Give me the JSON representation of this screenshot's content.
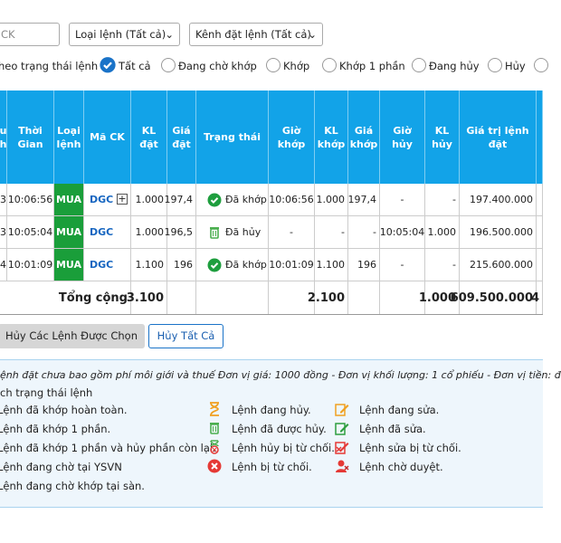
{
  "filters": {
    "symbol": "CK",
    "order_type": "Loại lệnh (Tất cả)",
    "channel": "Kênh đặt lệnh (Tất cả)",
    "status_label": "heo trạng thái lệnh",
    "status_options": [
      "Tất cả",
      "Đang chờ khớp",
      "Khớp",
      "Khớp 1 phần",
      "Đang hủy",
      "Hủy"
    ]
  },
  "table": {
    "headers": [
      "u h",
      "Thời Gian",
      "Loại lệnh",
      "Mã CK",
      "KL đặt",
      "Giá đặt",
      "Trạng thái",
      "Giờ khớp",
      "KL khớp",
      "Giá khớp",
      "Giờ hủy",
      "KL hủy",
      "Giá trị lệnh đặt"
    ],
    "rows": [
      [
        "3",
        "10:06:56",
        "MUA",
        "DGC",
        "1.000",
        "197,4",
        "Đã khớp",
        "10:06:56",
        "1.000",
        "197,4",
        "-",
        "-",
        "197.400.000"
      ],
      [
        "3",
        "10:05:04",
        "MUA",
        "DGC",
        "1.000",
        "196,5",
        "Đã hủy",
        "-",
        "-",
        "-",
        "10:05:04",
        "1.000",
        "196.500.000"
      ],
      [
        "4",
        "10:01:09",
        "MUA",
        "DGC",
        "1.100",
        "196",
        "Đã khớp",
        "10:01:09",
        "1.100",
        "196",
        "-",
        "-",
        "215.600.000"
      ]
    ],
    "total": {
      "label": "Tổng cộng",
      "kl_dat": "3.100",
      "kl_khop": "2.100",
      "kl_huy": "1.000",
      "gia_tri": "609.500.000",
      "extra": "4"
    }
  },
  "buttons": {
    "cancel_selected": "Hủy Các Lệnh Được Chọn",
    "cancel_all": "Hủy Tất Cả"
  },
  "legend": {
    "note": "ệnh đặt chưa bao gồm phí môi giới và thuế  Đơn vị giá: 1000 đồng - Đơn vị khối lượng: 1 cổ phiếu - Đơn vị tiền: đ",
    "title": "ch trạng thái lệnh",
    "col1": [
      "Lệnh đã khớp hoàn toàn.",
      "Lệnh đã khớp 1 phần.",
      "Lệnh đã khớp 1 phần và hủy phần còn lại.",
      "Lệnh đang chờ tại YSVN",
      "Lệnh đang chờ khớp tại sàn."
    ],
    "col2": [
      "Lệnh đang hủy.",
      "Lệnh đã được hủy.",
      "Lệnh hủy bị từ chối.",
      "Lệnh bị từ chối."
    ],
    "col3": [
      "Lệnh đang sửa.",
      "Lệnh đã sửa.",
      "Lệnh sửa bị từ chối.",
      "Lệnh chờ duyệt."
    ]
  }
}
